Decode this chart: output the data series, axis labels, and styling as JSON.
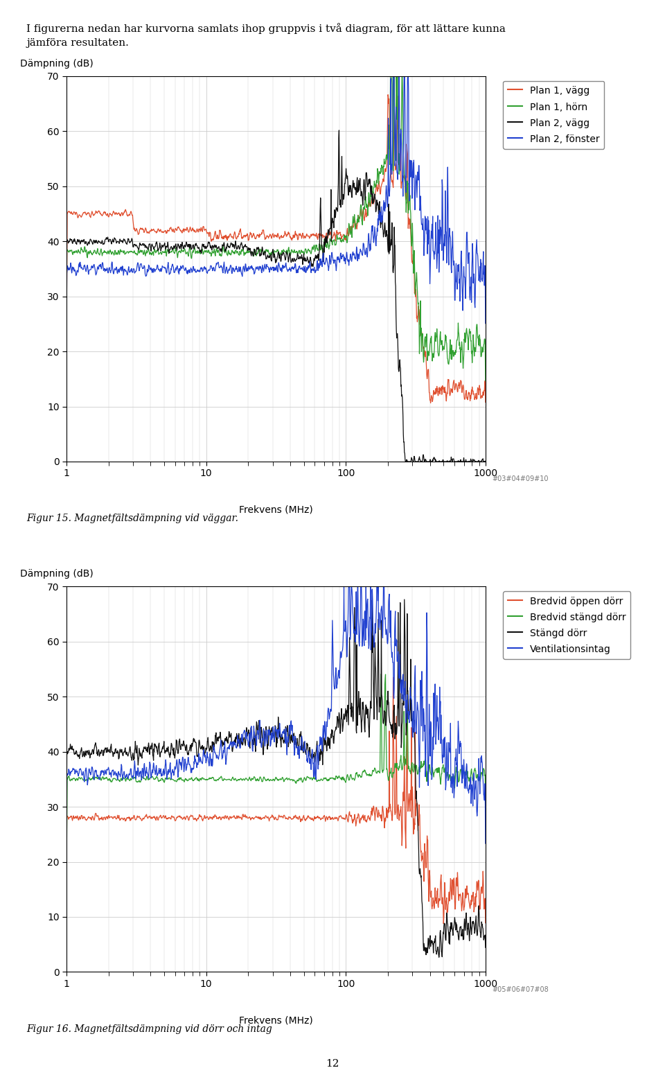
{
  "title_line1": "I figurerna nedan har kurvorna samlats ihop gruppvis i två diagram, för att lättare kunna",
  "title_line2": "jämföra resultaten.",
  "fig1": {
    "ylabel": "Dämpning (dB)",
    "xlabel": "Frekvens (MHz)",
    "ylim": [
      0,
      70
    ],
    "xlim": [
      1,
      1000
    ],
    "yticks": [
      0,
      10,
      20,
      30,
      40,
      50,
      60,
      70
    ],
    "legend": [
      "Plan 1, vägg",
      "Plan 1, hörn",
      "Plan 2, vägg",
      "Plan 2, fönster"
    ],
    "legend_colors": [
      "#e05030",
      "#30a030",
      "#101010",
      "#2040d0"
    ],
    "ref_label": "#03#04#09#10",
    "fig_label": "Figur 15. Magnetfältsdämpning vid väggar."
  },
  "fig2": {
    "ylabel": "Dämpning (dB)",
    "xlabel": "Frekvens (MHz)",
    "ylim": [
      0,
      70
    ],
    "xlim": [
      1,
      1000
    ],
    "yticks": [
      0,
      10,
      20,
      30,
      40,
      50,
      60,
      70
    ],
    "legend": [
      "Bredvid öppen dörr",
      "Bredvid stängd dörr",
      "Stängd dörr",
      "Ventilationsintag"
    ],
    "legend_colors": [
      "#e05030",
      "#30a030",
      "#101010",
      "#2040d0"
    ],
    "ref_label": "#05#06#07#08",
    "fig_label": "Figur 16. Magnetfältsdämpning vid dörr och intag"
  },
  "grid_color": "#cccccc",
  "plot_bg": "#ffffff"
}
